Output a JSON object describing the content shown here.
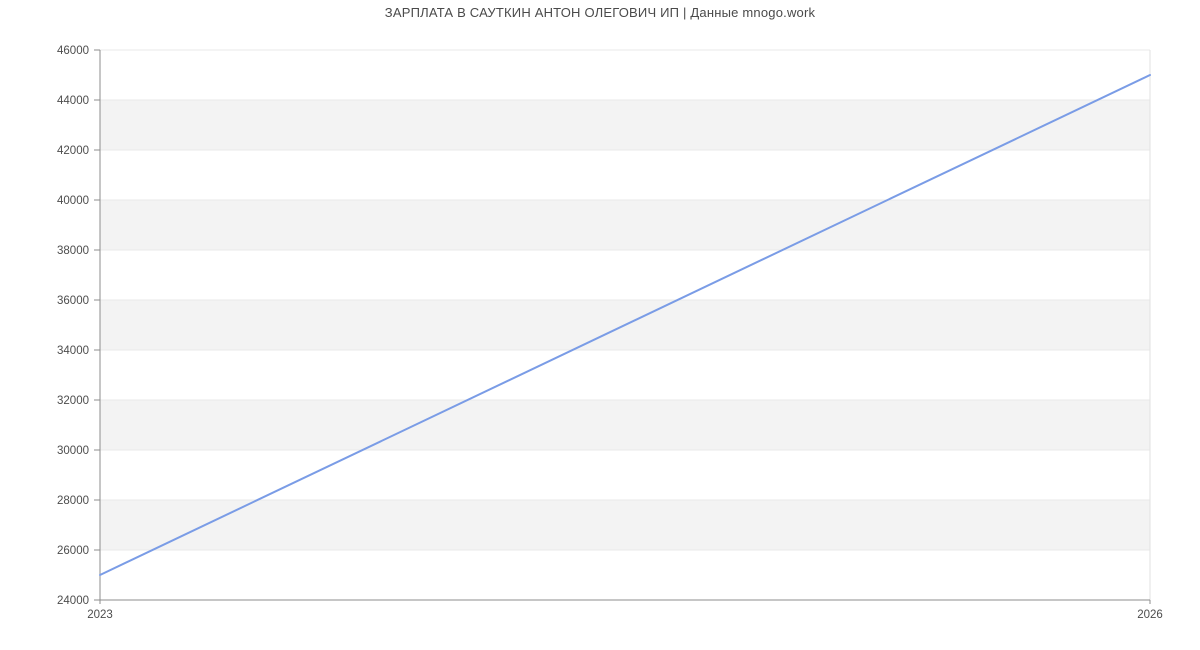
{
  "chart_data": {
    "type": "line",
    "title": "ЗАРПЛАТА В САУТКИН АНТОН ОЛЕГОВИЧ ИП | Данные mnogo.work",
    "x": [
      2023,
      2026
    ],
    "values": [
      25000,
      45000
    ],
    "series": [
      {
        "name": "salary",
        "x": [
          2023,
          2026
        ],
        "values": [
          25000,
          45000
        ]
      }
    ],
    "xlabel": "",
    "ylabel": "",
    "xlim": [
      2023,
      2026
    ],
    "ylim": [
      24000,
      46000
    ],
    "y_ticks": [
      24000,
      26000,
      28000,
      30000,
      32000,
      34000,
      36000,
      38000,
      40000,
      42000,
      44000,
      46000
    ],
    "y_tick_labels": [
      "24000",
      "26000",
      "28000",
      "30000",
      "32000",
      "34000",
      "36000",
      "38000",
      "40000",
      "42000",
      "44000",
      "46000"
    ],
    "x_ticks": [
      2023,
      2026
    ],
    "x_tick_labels": [
      "2023",
      "2026"
    ],
    "grid": "horizontal",
    "alternating_bands": true,
    "legend": "none"
  },
  "colors": {
    "line": "#7a9ce6",
    "band": "#f3f3f3",
    "gridline": "#e9e9e9",
    "plot_border": "#e2e2e2",
    "axis": "#8c8c8c",
    "title_text": "#4a4a4a",
    "tick_text": "#4d4d4d",
    "background": "#ffffff"
  }
}
